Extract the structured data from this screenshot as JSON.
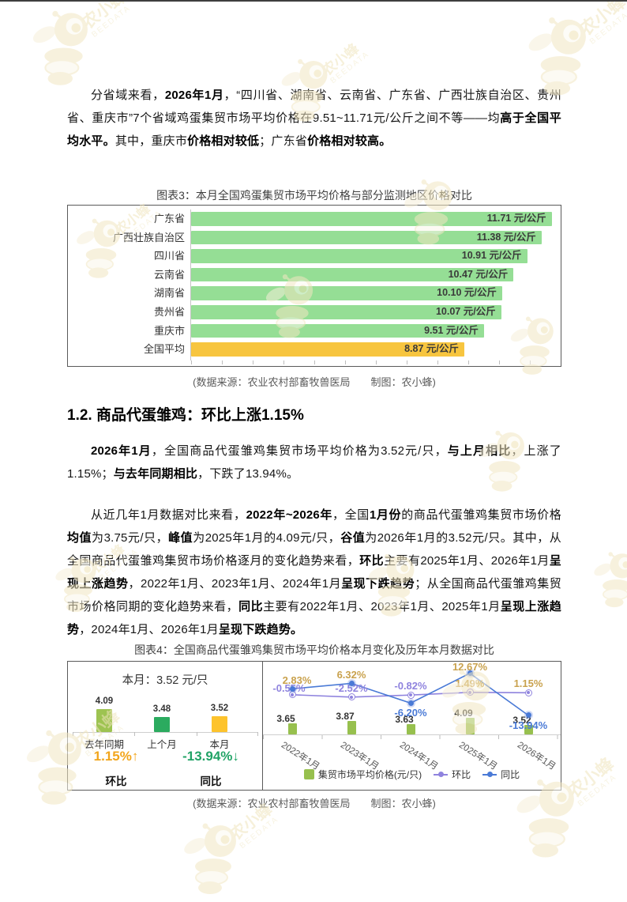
{
  "page": {
    "paragraph1": [
      {
        "t": "分省域来看，"
      },
      {
        "t": "2026年1月",
        "b": true
      },
      {
        "t": "，“四川省、湖南省、云南省、广东省、广西壮族自治区、贵州省、重庆市”7个省域鸡蛋集贸市场平均价格在9.51~11.71元/公斤之间不等——均"
      },
      {
        "t": "高于全国平均水平。",
        "b": true
      },
      {
        "t": "其中，重庆市"
      },
      {
        "t": "价格相对较低",
        "b": true
      },
      {
        "t": "；广东省"
      },
      {
        "t": "价格相对较高。",
        "b": true
      }
    ],
    "chart3_title": "图表3：本月全国鸡蛋集贸市场平均价格与部分监测地区价格对比",
    "chart3_caption": "(数据来源：农业农村部畜牧兽医局　　制图：农小蜂)",
    "section_heading": "1.2. 商品代蛋雏鸡：环比上涨1.15%",
    "paragraph2": [
      {
        "t": "2026年1月",
        "b": true
      },
      {
        "t": "，全国商品代蛋雏鸡集贸市场平均价格为3.52元/只，"
      },
      {
        "t": "与上月相比",
        "b": true
      },
      {
        "t": "，上涨了1.15%；"
      },
      {
        "t": "与去年同期相比",
        "b": true
      },
      {
        "t": "，下跌了13.94%。"
      }
    ],
    "paragraph3": [
      {
        "t": "从近几年1月数据对比来看，"
      },
      {
        "t": "2022年~2026年",
        "b": true
      },
      {
        "t": "，全国"
      },
      {
        "t": "1月份",
        "b": true
      },
      {
        "t": "的商品代蛋雏鸡集贸市场价格"
      },
      {
        "t": "均值",
        "b": true
      },
      {
        "t": "为3.75元/只，"
      },
      {
        "t": "峰值",
        "b": true
      },
      {
        "t": "为2025年1月的4.09元/只，"
      },
      {
        "t": "谷值",
        "b": true
      },
      {
        "t": "为2026年1月的3.52元/只。其中，从全国商品代蛋雏鸡集贸市场价格逐月的变化趋势来看，"
      },
      {
        "t": "环比",
        "b": true
      },
      {
        "t": "主要有2025年1月、2026年1月"
      },
      {
        "t": "呈现上涨趋势",
        "b": true
      },
      {
        "t": "，2022年1月、2023年1月、2024年1月"
      },
      {
        "t": "呈现下跌趋势",
        "b": true
      },
      {
        "t": "；从全国商品代蛋雏鸡集贸市场价格同期的变化趋势来看，"
      },
      {
        "t": "同比",
        "b": true
      },
      {
        "t": "主要有2022年1月、2023年1月、2025年1月"
      },
      {
        "t": "呈现上涨趋势",
        "b": true
      },
      {
        "t": "，2024年1月、2026年1月"
      },
      {
        "t": "呈现下跌趋势。",
        "b": true
      }
    ],
    "chart4_title": "图表4：全国商品代蛋雏鸡集贸市场平均价格本月变化及历年本月数据对比",
    "chart4_caption": "(数据来源：农业农村部畜牧兽医局　　制图：农小蜂)",
    "watermark": {
      "brand": "农小蜂",
      "sub": "BEEDATA"
    }
  },
  "chart_data": [
    {
      "id": "chart3-province-prices",
      "type": "bar",
      "orientation": "horizontal",
      "title": "图表3：本月全国鸡蛋集贸市场平均价格与部分监测地区价格对比",
      "categories": [
        "广东省",
        "广西壮族自治区",
        "四川省",
        "云南省",
        "湖南省",
        "贵州省",
        "重庆市",
        "全国平均"
      ],
      "values": [
        11.71,
        11.38,
        10.91,
        10.47,
        10.1,
        10.07,
        9.51,
        8.87
      ],
      "unit": "元/公斤",
      "xlim": [
        0,
        11.71
      ],
      "highlight_index": 7,
      "colors": {
        "bar": "#95de95",
        "highlight": "#f7c53f",
        "value_text": "#3a3a3a"
      }
    },
    {
      "id": "chart4-month-summary",
      "type": "bar",
      "title": "本月：3.52 元/只",
      "categories": [
        "去年同期",
        "上个月",
        "本月"
      ],
      "values": [
        4.09,
        3.48,
        3.52
      ],
      "bar_colors": [
        "#9dc351",
        "#2bab5f",
        "#fdc32c"
      ],
      "comparisons": [
        {
          "label": "环比",
          "value": "1.15%",
          "arrow": "↑",
          "color": "#f2a51b"
        },
        {
          "label": "同比",
          "value": "-13.94%",
          "arrow": "↓",
          "color": "#21a366"
        }
      ]
    },
    {
      "id": "chart4-history",
      "type": "bar+line",
      "categories": [
        "2022年1月",
        "2023年1月",
        "2024年1月",
        "2025年1月",
        "2026年1月"
      ],
      "series": [
        {
          "name": "集贸市场平均价格(元/只)",
          "type": "bar",
          "values": [
            3.65,
            3.87,
            3.63,
            4.09,
            3.52
          ],
          "color": "#97c04e"
        },
        {
          "name": "环比",
          "type": "line",
          "values": [
            -0.55,
            -2.52,
            -0.82,
            1.49,
            1.15
          ],
          "color": "#8f83de"
        },
        {
          "name": "同比",
          "type": "line",
          "values": [
            2.83,
            6.32,
            -6.2,
            12.67,
            -13.94
          ],
          "color": "#4a7ad6"
        }
      ],
      "label_positive_color": "#c9a24e",
      "legend_position": "bottom",
      "grid": false
    }
  ]
}
